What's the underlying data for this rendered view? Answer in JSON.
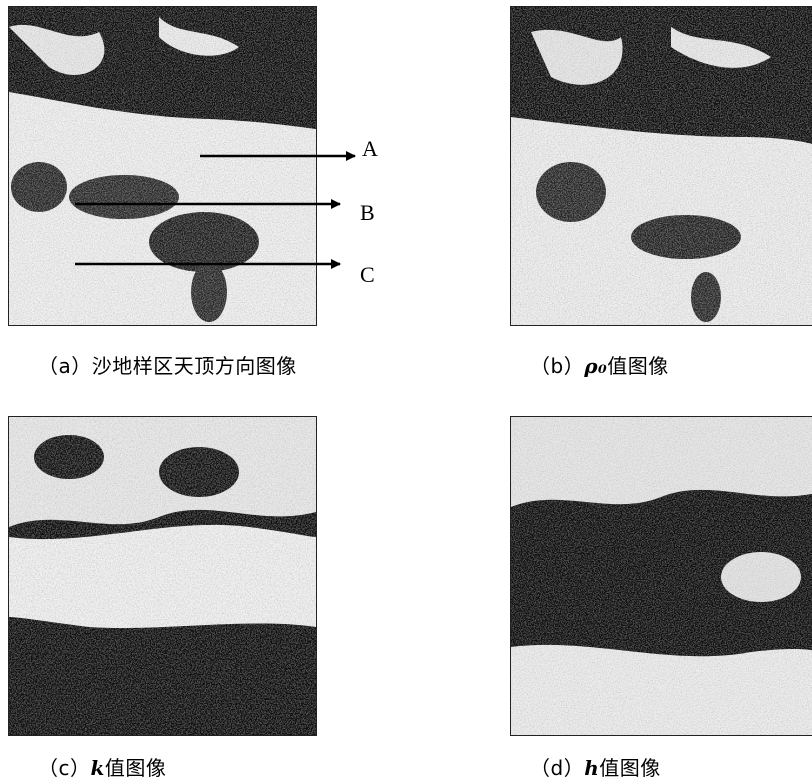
{
  "panels": [
    {
      "id": "a",
      "caption_prefix": "（a）",
      "caption_var": "",
      "caption_text": "沙地样区天顶方向图像"
    },
    {
      "id": "b",
      "caption_prefix": "（b）",
      "caption_var": "ρ₀",
      "caption_text": "值图像"
    },
    {
      "id": "c",
      "caption_prefix": "（c）",
      "caption_var": "k",
      "caption_text": "值图像"
    },
    {
      "id": "d",
      "caption_prefix": "（d）",
      "caption_var": "h",
      "caption_text": "值图像"
    }
  ],
  "markers": [
    {
      "label": "A"
    },
    {
      "label": "B"
    },
    {
      "label": "C"
    }
  ],
  "colors": {
    "ink": "#000000",
    "dark_region": "#111111",
    "light_region": "#f2f2f2"
  }
}
